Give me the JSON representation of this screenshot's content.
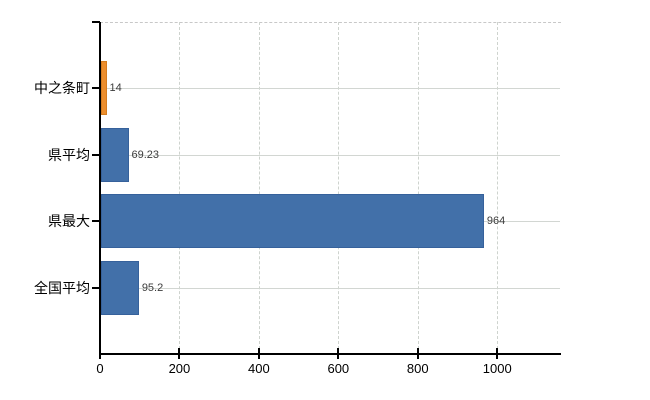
{
  "chart_data": {
    "type": "bar",
    "orientation": "horizontal",
    "title": "",
    "xlabel": "",
    "ylabel": "",
    "categories": [
      "中之条町",
      "県平均",
      "県最大",
      "全国平均"
    ],
    "values": [
      14,
      69.23,
      964,
      95.2
    ],
    "value_labels": [
      "14",
      "69.23",
      "964",
      "95.2"
    ],
    "bar_colors": [
      "#EC8E2D",
      "#4270A9",
      "#4270A9",
      "#4270A9"
    ],
    "bar_border_colors": [
      "#d57d1f",
      "#36619b",
      "#36619b",
      "#36619b"
    ],
    "xlim": [
      0,
      1158
    ],
    "x_tick_values": [
      0,
      200,
      400,
      600,
      800,
      1000
    ],
    "x_tick_labels": [
      "0",
      "200",
      "400",
      "600",
      "800",
      "1000"
    ],
    "grid": true,
    "legend": "none",
    "highlight_category": "中之条町",
    "colors": {
      "background": "#ffffff",
      "axis": "#000000",
      "vertical_grid": "#ced3ce",
      "horizontal_grid": "#d2d6d2",
      "plot_top_border": "#c8c8c8",
      "value_label_text": "#3c3c3c",
      "tick_label_text": "#000000",
      "bar_blue": "#4270A9",
      "bar_orange": "#EC8E2D"
    }
  }
}
